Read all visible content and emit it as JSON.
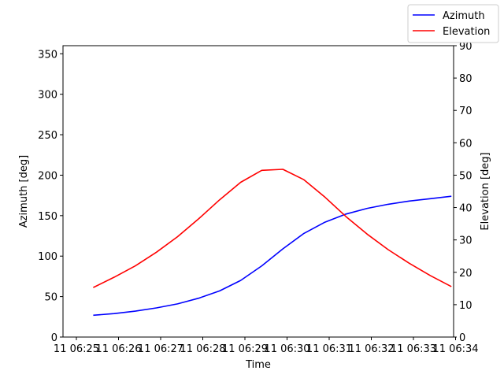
{
  "chart_data": {
    "type": "line",
    "xlabel": "Time",
    "ylabel_left": "Azimuth [deg]",
    "ylabel_right": "Elevation [deg]",
    "x_ticks": [
      "11 06:25",
      "11 06:26",
      "11 06:27",
      "11 06:28",
      "11 06:29",
      "11 06:30",
      "11 06:31",
      "11 06:32",
      "11 06:33",
      "11 06:34"
    ],
    "x_minutes": [
      0.4,
      0.9,
      1.4,
      1.9,
      2.4,
      2.9,
      3.4,
      3.9,
      4.4,
      4.9,
      5.4,
      5.9,
      6.4,
      6.9,
      7.4,
      7.9,
      8.4,
      8.9
    ],
    "ylim_left": [
      0,
      360
    ],
    "yticks_left": [
      0,
      50,
      100,
      150,
      200,
      250,
      300,
      350
    ],
    "ylim_right": [
      0,
      90
    ],
    "yticks_right": [
      0,
      10,
      20,
      30,
      40,
      50,
      60,
      70,
      80,
      90
    ],
    "legend_position": "top-right",
    "series": [
      {
        "name": "Azimuth",
        "axis": "left",
        "color": "#0000ff",
        "values": [
          27,
          29,
          32,
          36,
          41,
          48,
          57,
          70,
          88,
          109,
          128,
          142,
          152,
          159,
          164,
          168,
          171,
          174
        ]
      },
      {
        "name": "Elevation",
        "axis": "right",
        "color": "#ff0000",
        "values": [
          15.3,
          18.5,
          22,
          26.2,
          31.0,
          36.5,
          42.4,
          47.8,
          51.5,
          51.8,
          48.6,
          43.2,
          37.2,
          31.8,
          27.0,
          22.8,
          19.0,
          15.6
        ]
      }
    ]
  }
}
